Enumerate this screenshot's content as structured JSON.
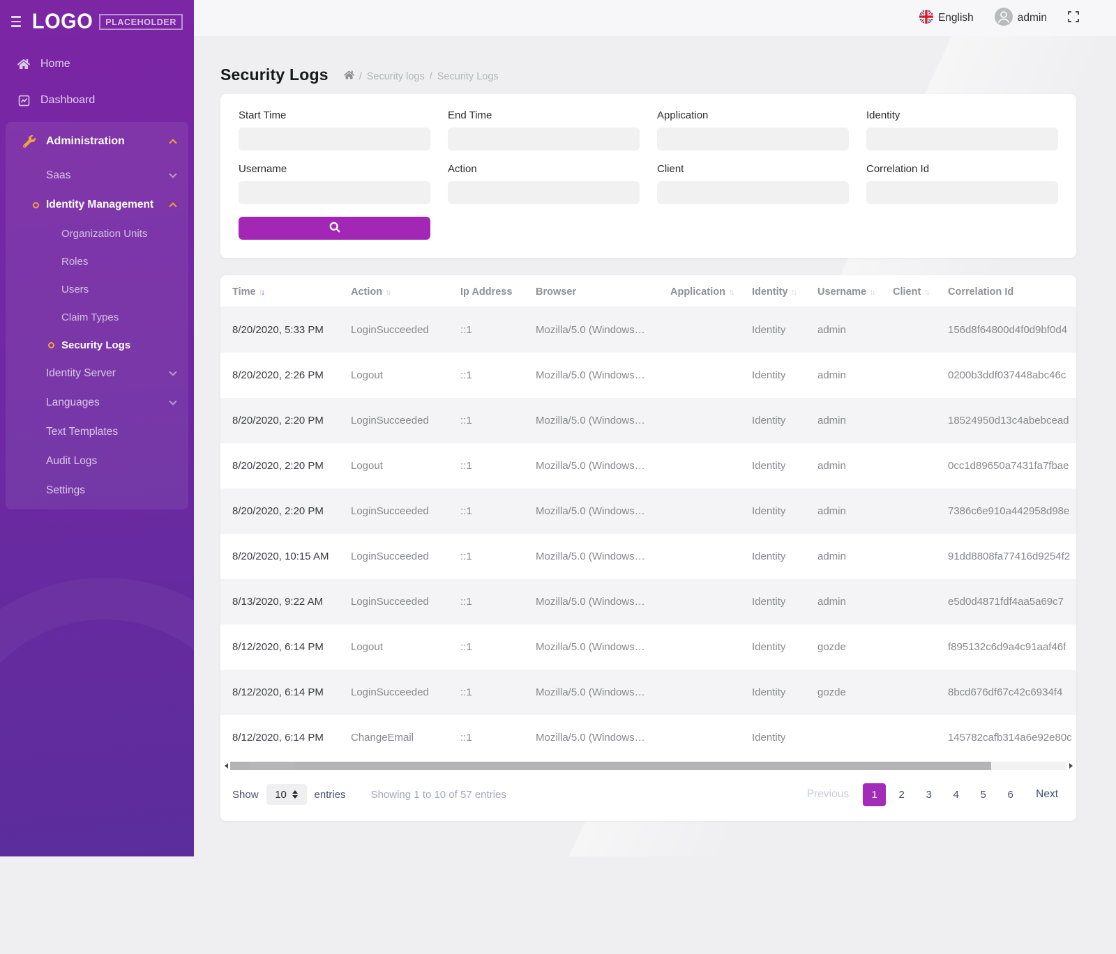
{
  "colors": {
    "sidebar_top": "#7c26a4",
    "sidebar_bottom": "#5b2d9c",
    "accent_purple": "#a227b5",
    "accent_orange": "#f2a33c",
    "pagination_active": "#a22bb9"
  },
  "sidebar": {
    "logo_main": "LOGO",
    "logo_badge": "PLACEHOLDER",
    "home": "Home",
    "dashboard": "Dashboard",
    "administration": "Administration",
    "saas": "Saas",
    "identity_management": "Identity Management",
    "organization_units": "Organization Units",
    "roles": "Roles",
    "users": "Users",
    "claim_types": "Claim Types",
    "security_logs": "Security Logs",
    "identity_server": "Identity Server",
    "languages": "Languages",
    "text_templates": "Text Templates",
    "audit_logs": "Audit Logs",
    "settings": "Settings"
  },
  "topbar": {
    "language": "English",
    "user": "admin"
  },
  "page": {
    "title": "Security Logs",
    "breadcrumb_1": "Security logs",
    "breadcrumb_2": "Security Logs",
    "breadcrumb_sep": "/"
  },
  "filters": {
    "fields": [
      {
        "label": "Start Time",
        "value": ""
      },
      {
        "label": "End Time",
        "value": ""
      },
      {
        "label": "Application",
        "value": ""
      },
      {
        "label": "Identity",
        "value": ""
      },
      {
        "label": "Username",
        "value": ""
      },
      {
        "label": "Action",
        "value": ""
      },
      {
        "label": "Client",
        "value": ""
      },
      {
        "label": "Correlation Id",
        "value": ""
      }
    ]
  },
  "table": {
    "columns": [
      {
        "label": "Time",
        "sortable": true,
        "sort": "desc"
      },
      {
        "label": "Action",
        "sortable": true,
        "sort": "none"
      },
      {
        "label": "Ip Address",
        "sortable": false,
        "sort": "none"
      },
      {
        "label": "Browser",
        "sortable": false,
        "sort": "none"
      },
      {
        "label": "Application",
        "sortable": true,
        "sort": "none"
      },
      {
        "label": "Identity",
        "sortable": true,
        "sort": "none"
      },
      {
        "label": "Username",
        "sortable": true,
        "sort": "none"
      },
      {
        "label": "Client",
        "sortable": true,
        "sort": "none"
      },
      {
        "label": "Correlation Id",
        "sortable": false,
        "sort": "none"
      }
    ],
    "rows": [
      {
        "time": "8/20/2020, 5:33 PM",
        "action": "LoginSucceeded",
        "ip": "::1",
        "browser": "Mozilla/5.0 (Windows…",
        "application": "",
        "identity": "Identity",
        "username": "admin",
        "client": "",
        "correlation_id": "156d8f64800d4f0d9bf0d4"
      },
      {
        "time": "8/20/2020, 2:26 PM",
        "action": "Logout",
        "ip": "::1",
        "browser": "Mozilla/5.0 (Windows…",
        "application": "",
        "identity": "Identity",
        "username": "admin",
        "client": "",
        "correlation_id": "0200b3ddf037448abc46c"
      },
      {
        "time": "8/20/2020, 2:20 PM",
        "action": "LoginSucceeded",
        "ip": "::1",
        "browser": "Mozilla/5.0 (Windows…",
        "application": "",
        "identity": "Identity",
        "username": "admin",
        "client": "",
        "correlation_id": "18524950d13c4abebcead"
      },
      {
        "time": "8/20/2020, 2:20 PM",
        "action": "Logout",
        "ip": "::1",
        "browser": "Mozilla/5.0 (Windows…",
        "application": "",
        "identity": "Identity",
        "username": "admin",
        "client": "",
        "correlation_id": "0cc1d89650a7431fa7fbae"
      },
      {
        "time": "8/20/2020, 2:20 PM",
        "action": "LoginSucceeded",
        "ip": "::1",
        "browser": "Mozilla/5.0 (Windows…",
        "application": "",
        "identity": "Identity",
        "username": "admin",
        "client": "",
        "correlation_id": "7386c6e910a442958d98e"
      },
      {
        "time": "8/20/2020, 10:15 AM",
        "action": "LoginSucceeded",
        "ip": "::1",
        "browser": "Mozilla/5.0 (Windows…",
        "application": "",
        "identity": "Identity",
        "username": "admin",
        "client": "",
        "correlation_id": "91dd8808fa77416d9254f2"
      },
      {
        "time": "8/13/2020, 9:22 AM",
        "action": "LoginSucceeded",
        "ip": "::1",
        "browser": "Mozilla/5.0 (Windows…",
        "application": "",
        "identity": "Identity",
        "username": "admin",
        "client": "",
        "correlation_id": "e5d0d4871fdf4aa5a69c7"
      },
      {
        "time": "8/12/2020, 6:14 PM",
        "action": "Logout",
        "ip": "::1",
        "browser": "Mozilla/5.0 (Windows…",
        "application": "",
        "identity": "Identity",
        "username": "gozde",
        "client": "",
        "correlation_id": "f895132c6d9a4c91aaf46f"
      },
      {
        "time": "8/12/2020, 6:14 PM",
        "action": "LoginSucceeded",
        "ip": "::1",
        "browser": "Mozilla/5.0 (Windows…",
        "application": "",
        "identity": "Identity",
        "username": "gozde",
        "client": "",
        "correlation_id": "8bcd676df67c42c6934f4"
      },
      {
        "time": "8/12/2020, 6:14 PM",
        "action": "ChangeEmail",
        "ip": "::1",
        "browser": "Mozilla/5.0 (Windows…",
        "application": "",
        "identity": "Identity",
        "username": "",
        "client": "",
        "correlation_id": "145782cafb314a6e92e80c"
      }
    ]
  },
  "footer": {
    "show_label": "Show",
    "page_size": "10",
    "entries_label": "entries",
    "summary": "Showing 1 to 10 of 57 entries",
    "previous_label": "Previous",
    "pages": [
      "1",
      "2",
      "3",
      "4",
      "5",
      "6"
    ],
    "active_page": "1",
    "next_label": "Next"
  }
}
